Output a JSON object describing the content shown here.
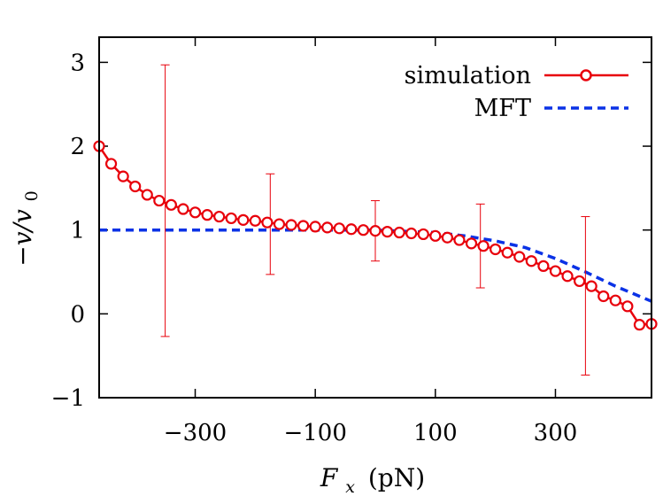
{
  "chart_data": {
    "type": "line",
    "xlabel": "F_x (pN)",
    "xlabel_main": "F",
    "xlabel_sub": "x",
    "xlabel_unit": "(pN)",
    "ylabel": "−v/v0",
    "ylabel_main": "−v/v",
    "ylabel_sub": "0",
    "xlim": [
      -460,
      460
    ],
    "ylim": [
      -1,
      3.3
    ],
    "xticks": [
      -300,
      -100,
      100,
      300
    ],
    "xtick_labels": [
      "−300",
      "−100",
      "100",
      "300"
    ],
    "yticks": [
      -1,
      0,
      1,
      2,
      3
    ],
    "ytick_labels": [
      "−1",
      "0",
      "1",
      "2",
      "3"
    ],
    "grid": false,
    "legend_position": "top-right",
    "series": [
      {
        "name": "simulation",
        "color": "#e8000b",
        "style": "solid line with open circle markers",
        "x": [
          -460,
          -440,
          -420,
          -400,
          -380,
          -360,
          -340,
          -320,
          -300,
          -280,
          -260,
          -240,
          -220,
          -200,
          -180,
          -160,
          -140,
          -120,
          -100,
          -80,
          -60,
          -40,
          -20,
          0,
          20,
          40,
          60,
          80,
          100,
          120,
          140,
          160,
          180,
          200,
          220,
          240,
          260,
          280,
          300,
          320,
          340,
          360,
          380,
          400,
          420,
          440,
          460
        ],
        "y": [
          2.0,
          1.79,
          1.64,
          1.52,
          1.42,
          1.35,
          1.3,
          1.25,
          1.21,
          1.18,
          1.16,
          1.14,
          1.12,
          1.11,
          1.09,
          1.07,
          1.06,
          1.05,
          1.04,
          1.03,
          1.02,
          1.01,
          1.0,
          0.99,
          0.98,
          0.97,
          0.96,
          0.95,
          0.93,
          0.91,
          0.88,
          0.84,
          0.81,
          0.77,
          0.73,
          0.68,
          0.63,
          0.57,
          0.51,
          0.45,
          0.39,
          0.33,
          0.21,
          0.16,
          0.09,
          -0.13,
          -0.12
        ]
      },
      {
        "name": "MFT",
        "color": "#0a32e6",
        "style": "dashed line",
        "x": [
          -460,
          -400,
          -300,
          -200,
          -100,
          0,
          100,
          150,
          200,
          250,
          300,
          350,
          400,
          460
        ],
        "y": [
          1.0,
          1.0,
          1.0,
          1.0,
          1.0,
          1.0,
          0.97,
          0.93,
          0.87,
          0.79,
          0.66,
          0.5,
          0.33,
          0.15
        ]
      }
    ],
    "error_bars": {
      "series": "simulation",
      "points": [
        {
          "x": -350,
          "y": 1.35,
          "low": -0.27,
          "high": 2.97
        },
        {
          "x": -175,
          "y": 1.07,
          "low": 0.47,
          "high": 1.67
        },
        {
          "x": 0,
          "y": 0.99,
          "low": 0.63,
          "high": 1.35
        },
        {
          "x": 175,
          "y": 0.81,
          "low": 0.31,
          "high": 1.31
        },
        {
          "x": 350,
          "y": 0.21,
          "low": -0.73,
          "high": 1.16
        }
      ]
    }
  }
}
